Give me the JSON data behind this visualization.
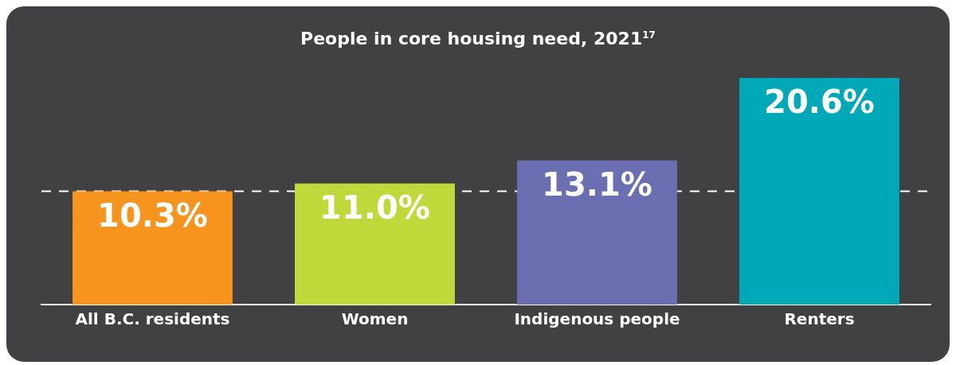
{
  "chart_data": {
    "type": "bar",
    "title": "People in core housing need, 2021$^{17}$",
    "categories": [
      "All B.C. residents",
      "Women",
      "Indigenous people",
      "Renters"
    ],
    "values": [
      10.3,
      11.0,
      13.1,
      20.6
    ],
    "colors": [
      "#f7941d",
      "#c1d83a",
      "#6b6fb2",
      "#00a9b7"
    ],
    "value_labels": [
      "10.3%",
      "11.0%",
      "13.1%",
      "20.6%"
    ],
    "ref_lines": [
      {
        "axis": "y",
        "value": 10.3,
        "color": "#ffffff",
        "line_style": "dashed"
      }
    ],
    "grid": false,
    "legend": false
  }
}
